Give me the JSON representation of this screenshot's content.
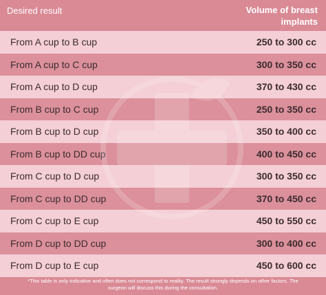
{
  "table": {
    "header": [
      "Desired result",
      "Volume of breast implants"
    ],
    "rows": [
      [
        "From A cup to B cup",
        "250 to 300 cc"
      ],
      [
        "From A cup to C cup",
        "300 to 350 cc"
      ],
      [
        "From A cup to D cup",
        "370 to 430 cc"
      ],
      [
        "From B cup to C cup",
        "250 to 350 cc"
      ],
      [
        "From B cup to D cup",
        "350 to 400 cc"
      ],
      [
        "From B cup to DD cup",
        "400 to 450 cc"
      ],
      [
        "From C cup to D cup",
        "300 to 350 cc"
      ],
      [
        "From C cup to DD cup",
        "370 to 450 cc"
      ],
      [
        "From C cup to E cup",
        "450 to 550 cc"
      ],
      [
        "From D cup to DD cup",
        "300 to 400 cc"
      ],
      [
        "From D cup to E cup",
        "450 to 600 cc"
      ]
    ],
    "footnote": "*This table is only indicative and often does not correspond to reality. The result strongly depends on other factors. The surgeon will discuss this during the consultation."
  }
}
